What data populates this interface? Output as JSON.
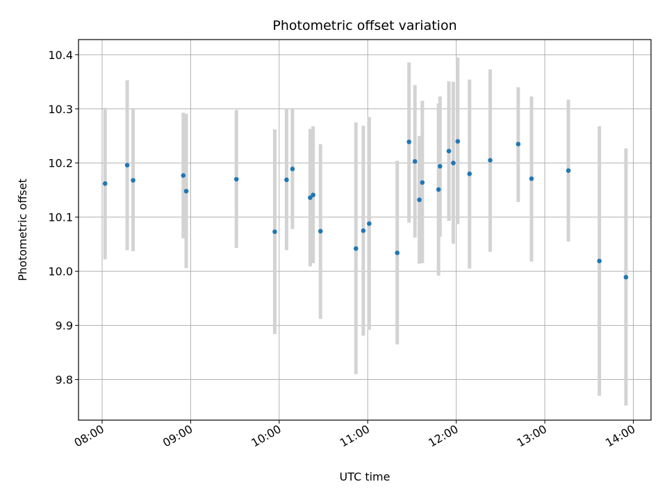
{
  "chart_data": {
    "type": "scatter",
    "title": "Photometric offset variation",
    "xlabel": "UTC time",
    "ylabel": "Photometric offset",
    "x_ticks": [
      "08:00",
      "09:00",
      "10:00",
      "11:00",
      "12:00",
      "13:00",
      "14:00"
    ],
    "y_ticks": [
      "9.8",
      "9.9",
      "10.0",
      "10.1",
      "10.2",
      "10.3",
      "10.4"
    ],
    "xlim": [
      "07:44",
      "14:12"
    ],
    "ylim": [
      9.725,
      10.428
    ],
    "grid": true,
    "colors": {
      "marker": "#1f77b4",
      "errorbar": "#d3d3d3",
      "grid": "#b0b0b0"
    },
    "points": [
      {
        "x": "08:02",
        "y": 10.162,
        "ylow": 10.022,
        "yhigh": 10.302
      },
      {
        "x": "08:17",
        "y": 10.196,
        "ylow": 10.039,
        "yhigh": 10.353
      },
      {
        "x": "08:21",
        "y": 10.168,
        "ylow": 10.037,
        "yhigh": 10.299
      },
      {
        "x": "08:55",
        "y": 10.177,
        "ylow": 10.061,
        "yhigh": 10.293
      },
      {
        "x": "08:57",
        "y": 10.148,
        "ylow": 10.006,
        "yhigh": 10.291
      },
      {
        "x": "09:31",
        "y": 10.17,
        "ylow": 10.043,
        "yhigh": 10.298
      },
      {
        "x": "09:57",
        "y": 10.073,
        "ylow": 9.884,
        "yhigh": 10.262
      },
      {
        "x": "10:05",
        "y": 10.169,
        "ylow": 10.039,
        "yhigh": 10.299
      },
      {
        "x": "10:09",
        "y": 10.189,
        "ylow": 10.078,
        "yhigh": 10.3
      },
      {
        "x": "10:21",
        "y": 10.136,
        "ylow": 10.009,
        "yhigh": 10.263
      },
      {
        "x": "10:23",
        "y": 10.141,
        "ylow": 10.015,
        "yhigh": 10.268
      },
      {
        "x": "10:28",
        "y": 10.074,
        "ylow": 9.912,
        "yhigh": 10.235
      },
      {
        "x": "10:52",
        "y": 10.042,
        "ylow": 9.81,
        "yhigh": 10.275
      },
      {
        "x": "10:57",
        "y": 10.075,
        "ylow": 9.881,
        "yhigh": 10.269
      },
      {
        "x": "11:01",
        "y": 10.088,
        "ylow": 9.892,
        "yhigh": 10.285
      },
      {
        "x": "11:20",
        "y": 10.034,
        "ylow": 9.865,
        "yhigh": 10.204
      },
      {
        "x": "11:28",
        "y": 10.239,
        "ylow": 10.09,
        "yhigh": 10.386
      },
      {
        "x": "11:32",
        "y": 10.203,
        "ylow": 10.062,
        "yhigh": 10.344
      },
      {
        "x": "11:35",
        "y": 10.132,
        "ylow": 10.014,
        "yhigh": 10.25
      },
      {
        "x": "11:37",
        "y": 10.164,
        "ylow": 10.015,
        "yhigh": 10.315
      },
      {
        "x": "11:48",
        "y": 10.151,
        "ylow": 9.992,
        "yhigh": 10.31
      },
      {
        "x": "11:49",
        "y": 10.194,
        "ylow": 10.064,
        "yhigh": 10.323
      },
      {
        "x": "11:55",
        "y": 10.222,
        "ylow": 10.093,
        "yhigh": 10.351
      },
      {
        "x": "11:58",
        "y": 10.2,
        "ylow": 10.051,
        "yhigh": 10.35
      },
      {
        "x": "12:01",
        "y": 10.24,
        "ylow": 10.087,
        "yhigh": 10.395
      },
      {
        "x": "12:09",
        "y": 10.18,
        "ylow": 10.005,
        "yhigh": 10.354
      },
      {
        "x": "12:23",
        "y": 10.205,
        "ylow": 10.036,
        "yhigh": 10.373
      },
      {
        "x": "12:42",
        "y": 10.235,
        "ylow": 10.128,
        "yhigh": 10.34
      },
      {
        "x": "12:51",
        "y": 10.171,
        "ylow": 10.018,
        "yhigh": 10.323
      },
      {
        "x": "13:16",
        "y": 10.186,
        "ylow": 10.055,
        "yhigh": 10.317
      },
      {
        "x": "13:37",
        "y": 10.019,
        "ylow": 9.77,
        "yhigh": 10.268
      },
      {
        "x": "13:55",
        "y": 9.989,
        "ylow": 9.752,
        "yhigh": 10.227
      }
    ]
  }
}
